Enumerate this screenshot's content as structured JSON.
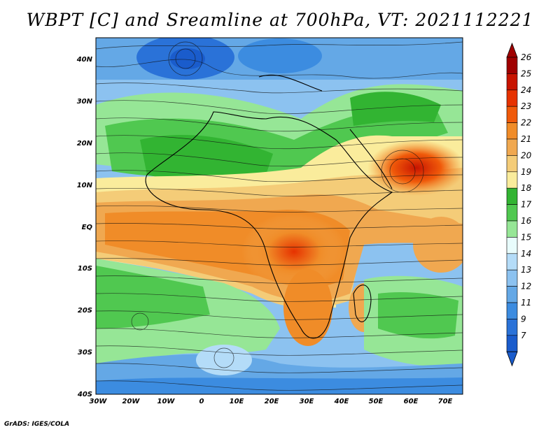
{
  "title": "WBPT [C] and Sreamline at 700hPa, VT: 2021112221",
  "lat_labels": [
    "40N",
    "30N",
    "20N",
    "10N",
    "EQ",
    "10S",
    "20S",
    "30S",
    "40S"
  ],
  "lon_labels": [
    "30W",
    "20W",
    "10W",
    "0",
    "10E",
    "20E",
    "30E",
    "40E",
    "50E",
    "60E",
    "70E"
  ],
  "colorbar": {
    "levels": [
      "26",
      "25",
      "24",
      "23",
      "22",
      "21",
      "20",
      "19",
      "18",
      "17",
      "16",
      "15",
      "14",
      "13",
      "12",
      "11",
      "9",
      "7"
    ],
    "colors": [
      "#a00000",
      "#c81400",
      "#e63200",
      "#f05a0a",
      "#f08c28",
      "#f0a850",
      "#f4cc78",
      "#faec9c",
      "#32b432",
      "#50c850",
      "#96e696",
      "#e8fcfc",
      "#b4dcf8",
      "#8cc2f0",
      "#64a8e6",
      "#3c8ce0",
      "#2a72d8",
      "#1a5ccc"
    ]
  },
  "map": {
    "lon_range": [
      -30,
      75
    ],
    "lat_range": [
      -40,
      45
    ],
    "variable": "WBPT [C]",
    "level": "700hPa"
  },
  "footer": "GrADS: IGES/COLA"
}
